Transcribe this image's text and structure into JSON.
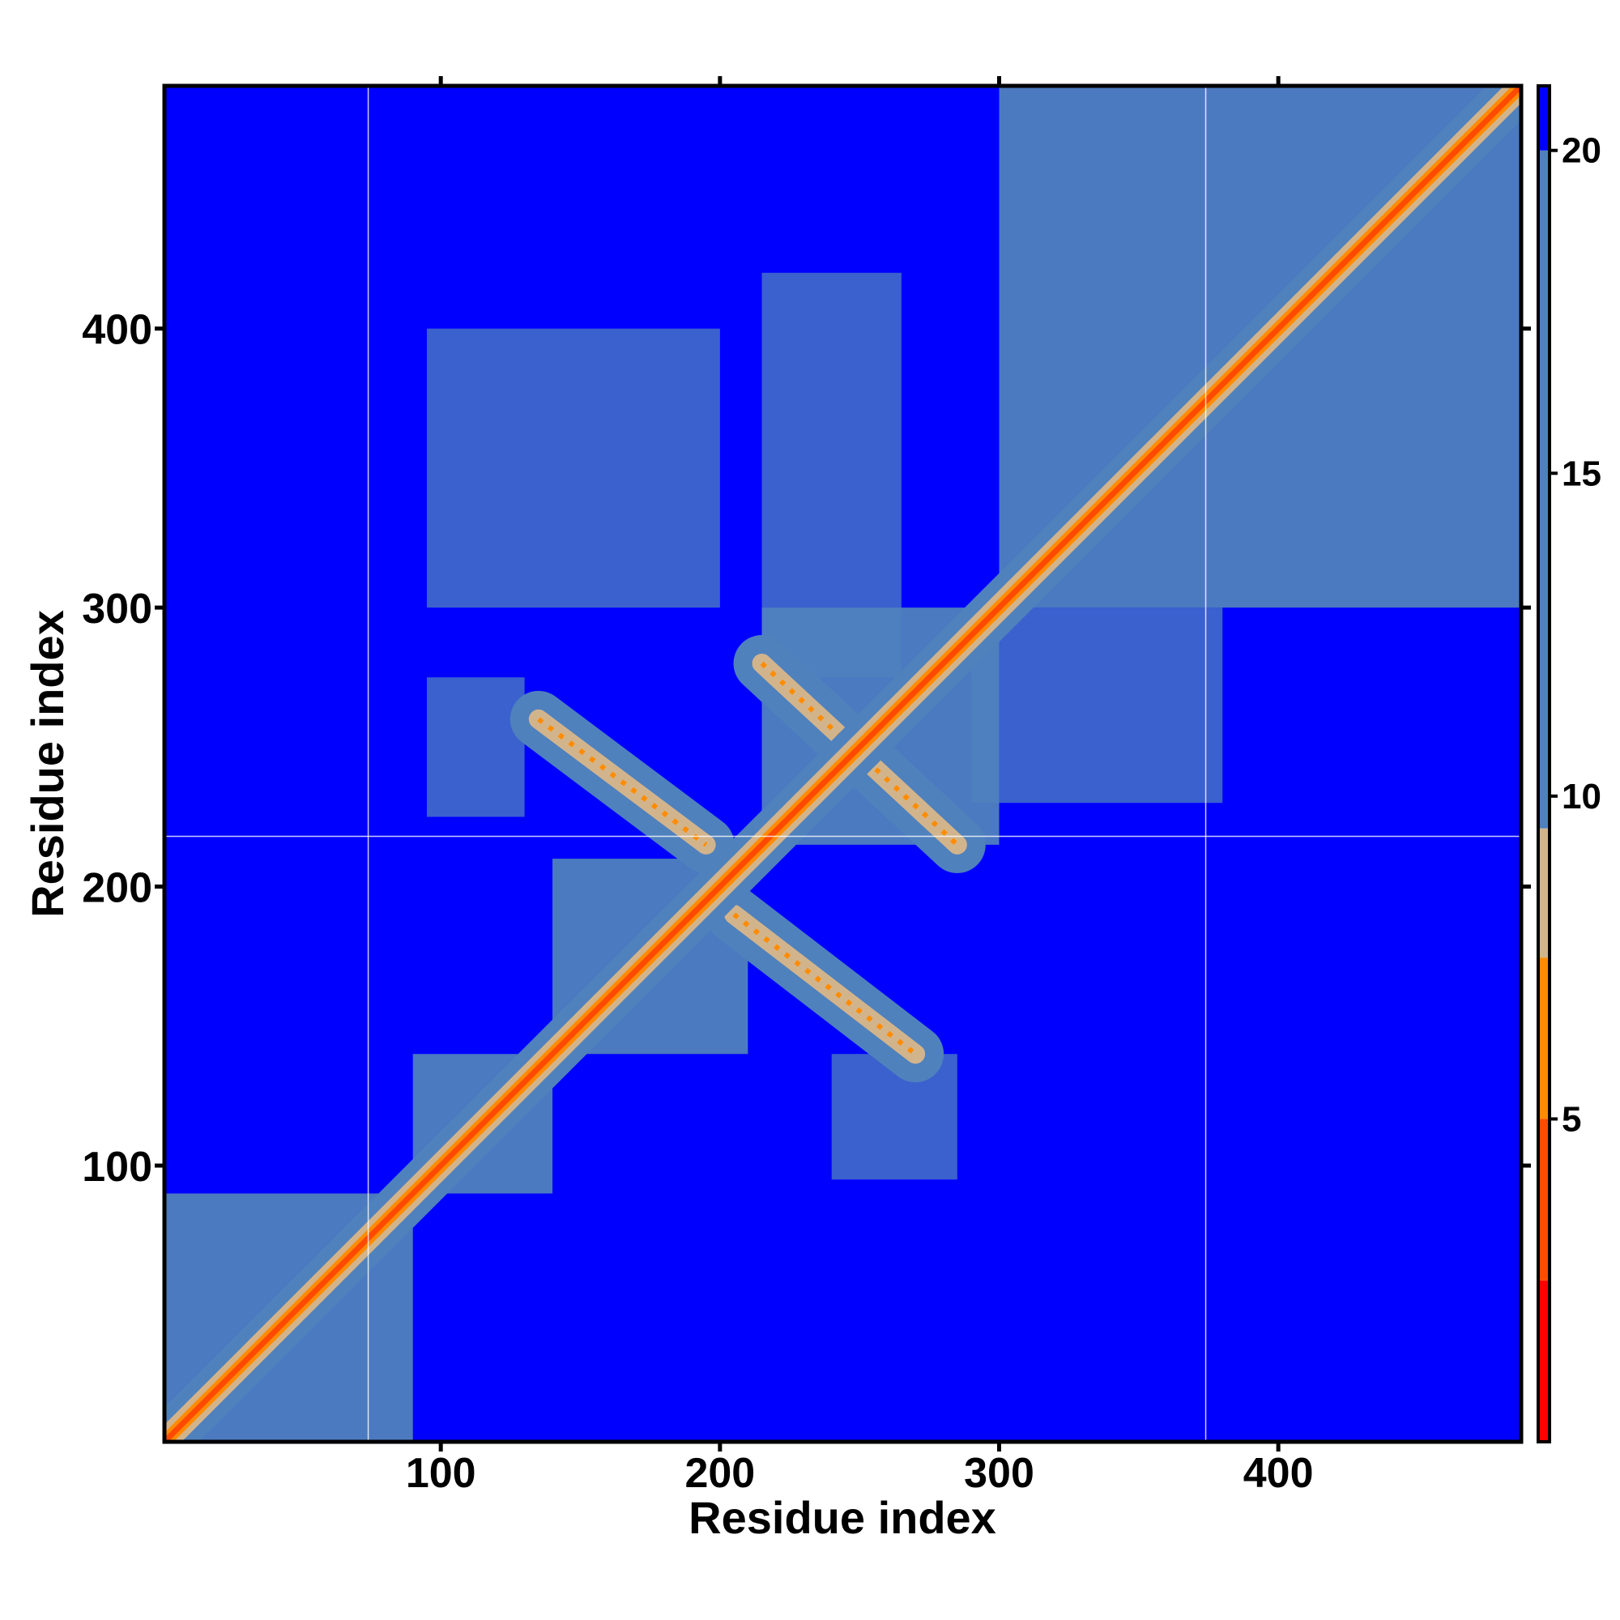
{
  "chart_data": {
    "type": "heatmap",
    "title": "",
    "xlabel": "Residue index",
    "ylabel": "Residue index",
    "x_range": [
      1,
      487
    ],
    "y_range": [
      1,
      487
    ],
    "x_ticks": [
      100,
      200,
      300,
      400
    ],
    "y_ticks": [
      100,
      200,
      300,
      400
    ],
    "grid": false,
    "reference_lines": {
      "x": [
        74,
        374
      ],
      "y": [
        218
      ]
    },
    "colorbar": {
      "ticks": [
        5,
        10,
        15,
        20
      ],
      "range": [
        0,
        21
      ],
      "colors": [
        {
          "from": 0,
          "to": 2.5,
          "color": "#ff0000"
        },
        {
          "from": 2.5,
          "to": 5,
          "color": "#ff4a00"
        },
        {
          "from": 5,
          "to": 7.5,
          "color": "#ff8c00"
        },
        {
          "from": 7.5,
          "to": 9.5,
          "color": "#d2b48c"
        },
        {
          "from": 9.5,
          "to": 20,
          "color": "#4f81bd"
        },
        {
          "from": 20,
          "to": 21,
          "color": "#0000ff"
        }
      ]
    },
    "features": {
      "background_value": 21,
      "diagonal": {
        "from": [
          1,
          1
        ],
        "to": [
          487,
          487
        ],
        "value": 3
      },
      "domains": [
        {
          "x": [
            1,
            90
          ],
          "y": [
            1,
            90
          ],
          "value": 14
        },
        {
          "x": [
            90,
            140
          ],
          "y": [
            90,
            140
          ],
          "value": 14
        },
        {
          "x": [
            300,
            487
          ],
          "y": [
            300,
            487
          ],
          "value": 15
        },
        {
          "x": [
            215,
            300
          ],
          "y": [
            215,
            300
          ],
          "value": 15
        },
        {
          "x": [
            140,
            210
          ],
          "y": [
            140,
            210
          ],
          "value": 15
        }
      ],
      "cross_bands": [
        {
          "from": [
            135,
            260
          ],
          "to": [
            195,
            215
          ],
          "value": 8
        },
        {
          "from": [
            205,
            190
          ],
          "to": [
            270,
            140
          ],
          "value": 8
        },
        {
          "from": [
            215,
            280
          ],
          "to": [
            285,
            215
          ],
          "value": 8
        }
      ],
      "patches": [
        {
          "x": [
            95,
            130
          ],
          "y": [
            225,
            275
          ],
          "value": 16
        },
        {
          "x": [
            240,
            285
          ],
          "y": [
            95,
            140
          ],
          "value": 16
        },
        {
          "x": [
            215,
            265
          ],
          "y": [
            275,
            420
          ],
          "value": 18
        },
        {
          "x": [
            290,
            380
          ],
          "y": [
            230,
            300
          ],
          "value": 18
        },
        {
          "x": [
            95,
            200
          ],
          "y": [
            300,
            400
          ],
          "value": 19
        }
      ]
    }
  }
}
